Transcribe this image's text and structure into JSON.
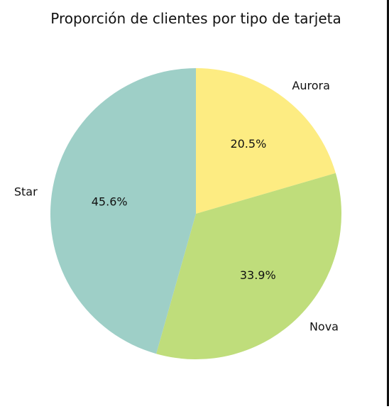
{
  "chart_data": {
    "type": "pie",
    "title": "Proporción de clientes por tipo de tarjeta",
    "slices": [
      {
        "label": "Aurora",
        "value": 20.5,
        "pct_label": "20.5%",
        "color": "#FDEC82"
      },
      {
        "label": "Nova",
        "value": 33.9,
        "pct_label": "33.9%",
        "color": "#BFDD7B"
      },
      {
        "label": "Star",
        "value": 45.6,
        "pct_label": "45.6%",
        "color": "#9ECFC7"
      }
    ],
    "start_angle_deg": 90,
    "direction": "clockwise",
    "legend": "none"
  }
}
